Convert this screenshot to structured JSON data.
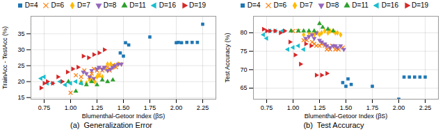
{
  "chart_data": [
    {
      "type": "scatter",
      "title": "(a)  Generalization Error",
      "xlabel": "Blumenthal-Getoor Index (βS)",
      "ylabel": "TrainAcc - TestAcc (%)",
      "xlim": [
        0.625,
        2.375
      ],
      "xticks": [
        0.75,
        {
          "value": 1.0,
          "label": "1.00"
        },
        1.25,
        {
          "value": 1.5,
          "label": "1.50"
        },
        1.75,
        {
          "value": 2.0,
          "label": "2.00"
        },
        2.25
      ],
      "ylim": [
        14.5,
        40.5
      ],
      "yticks": [
        15,
        20,
        25,
        30,
        35
      ],
      "grid": true,
      "legend": "top",
      "series": [
        {
          "name": "D=4",
          "color": "#1f77b4",
          "marker": "square",
          "x": [
            1.47,
            1.5,
            1.52,
            1.55,
            1.75,
            2.0,
            2.02,
            2.05,
            2.1,
            2.15,
            2.2,
            2.25
          ],
          "values": [
            29.0,
            28.0,
            32.2,
            31.5,
            34.0,
            32.2,
            32.3,
            32.2,
            32.3,
            32.3,
            32.3,
            38.0
          ]
        },
        {
          "name": "D=6",
          "color": "#ff7f0e",
          "marker": "x",
          "x": [
            1.0,
            1.05,
            1.1,
            1.13,
            1.18,
            1.2,
            1.22,
            1.25,
            1.27,
            1.3,
            1.32,
            1.35,
            1.37,
            1.4,
            1.43,
            1.47
          ],
          "values": [
            16.5,
            22.0,
            21.5,
            23.5,
            21.5,
            22.5,
            24.0,
            23.5,
            22.0,
            23.5,
            24.2,
            24.5,
            23.5,
            25.2,
            24.5,
            25.5
          ]
        },
        {
          "name": "D=7",
          "color": "#ffbb00",
          "marker": "diamond",
          "x": [
            1.1,
            1.15,
            1.18,
            1.2,
            1.23,
            1.25,
            1.27,
            1.3,
            1.33,
            1.35,
            1.38,
            1.4,
            1.42,
            1.45
          ],
          "values": [
            20.0,
            19.5,
            20.5,
            21.0,
            20.0,
            21.5,
            22.0,
            21.5,
            24.0,
            25.5,
            25.5,
            24.5,
            25.0,
            25.5
          ]
        },
        {
          "name": "D=8",
          "color": "#9467bd",
          "marker": "triangle_down",
          "x": [
            1.12,
            1.15,
            1.18,
            1.2,
            1.22,
            1.25,
            1.27,
            1.3,
            1.32,
            1.35,
            1.38,
            1.4,
            1.42,
            1.45,
            1.48
          ],
          "values": [
            23.0,
            22.5,
            21.5,
            23.5,
            21.0,
            24.0,
            24.5,
            24.0,
            24.5,
            23.5,
            24.0,
            24.5,
            25.0,
            25.5,
            25.5
          ]
        },
        {
          "name": "D=11",
          "color": "#2ca02c",
          "marker": "triangle_up",
          "x": [
            0.98,
            1.05,
            1.1,
            1.15,
            1.2,
            1.25,
            1.3,
            1.35,
            1.4
          ],
          "values": [
            20.0,
            17.0,
            19.5,
            19.0,
            20.0,
            19.0,
            20.5,
            20.0,
            20.5
          ]
        },
        {
          "name": "D=16",
          "color": "#17becf",
          "marker": "triangle_left",
          "x": [
            0.72,
            0.75,
            0.78,
            0.83,
            0.9,
            0.95,
            1.0,
            1.05,
            1.1
          ],
          "values": [
            21.0,
            21.5,
            19.5,
            19.5,
            20.0,
            19.0,
            19.5,
            20.0,
            19.5
          ]
        },
        {
          "name": "D=19",
          "color": "#d62728",
          "marker": "triangle_right",
          "x": [
            0.72,
            0.75,
            0.78,
            0.83,
            0.88,
            0.92,
            0.97,
            1.02,
            1.07,
            1.12,
            1.17,
            1.22,
            1.27,
            1.32
          ],
          "values": [
            18.0,
            19.5,
            20.0,
            19.5,
            21.5,
            20.0,
            23.0,
            24.0,
            24.5,
            28.0,
            27.5,
            28.5,
            29.0,
            30.0
          ]
        }
      ]
    },
    {
      "type": "scatter",
      "title": "(b)  Test Accuracy",
      "xlabel": "Blumenthal-Getoor Index (βS)",
      "ylabel": "Test Accuracy (%)",
      "xlim": [
        0.625,
        2.375
      ],
      "xticks": [
        0.75,
        {
          "value": 1.0,
          "label": "1.00"
        },
        1.25,
        {
          "value": 1.5,
          "label": "1.50"
        },
        1.75,
        {
          "value": 2.0,
          "label": "2.00"
        },
        2.25
      ],
      "ylim": [
        62.0,
        84.5
      ],
      "yticks": [
        65,
        70,
        75,
        80
      ],
      "grid": true,
      "legend": "top",
      "series": [
        {
          "name": "D=4",
          "color": "#1f77b4",
          "marker": "square",
          "x": [
            1.47,
            1.5,
            1.52,
            1.55,
            1.75,
            2.0,
            2.05,
            2.1,
            2.15,
            2.2,
            2.25
          ],
          "values": [
            66.5,
            65.5,
            67.5,
            66.0,
            65.5,
            62.0,
            68.0,
            68.0,
            68.0,
            68.0,
            68.0
          ]
        },
        {
          "name": "D=6",
          "color": "#ff7f0e",
          "marker": "x",
          "x": [
            1.0,
            1.05,
            1.1,
            1.13,
            1.18,
            1.2,
            1.22,
            1.25,
            1.27,
            1.3,
            1.32,
            1.35,
            1.37,
            1.4,
            1.43,
            1.47
          ],
          "values": [
            80.5,
            80.5,
            78.0,
            78.0,
            77.5,
            77.0,
            76.5,
            76.5,
            77.0,
            76.5,
            75.5,
            75.5,
            76.5,
            75.5,
            75.5,
            76.0
          ]
        },
        {
          "name": "D=7",
          "color": "#ffbb00",
          "marker": "diamond",
          "x": [
            1.1,
            1.15,
            1.18,
            1.2,
            1.23,
            1.25,
            1.27,
            1.3,
            1.33,
            1.35,
            1.38,
            1.4,
            1.42,
            1.45
          ],
          "values": [
            79.5,
            80.0,
            79.5,
            79.5,
            80.0,
            79.5,
            80.0,
            80.5,
            80.0,
            80.5,
            80.5,
            80.0,
            80.0,
            79.5
          ]
        },
        {
          "name": "D=8",
          "color": "#9467bd",
          "marker": "triangle_down",
          "x": [
            1.12,
            1.15,
            1.18,
            1.2,
            1.22,
            1.25,
            1.27,
            1.3,
            1.32,
            1.35,
            1.38,
            1.4,
            1.42,
            1.45,
            1.48
          ],
          "values": [
            78.5,
            79.0,
            79.5,
            78.5,
            80.0,
            78.0,
            77.5,
            77.0,
            76.5,
            76.0,
            76.5,
            76.5,
            76.0,
            76.5,
            75.5
          ]
        },
        {
          "name": "D=11",
          "color": "#2ca02c",
          "marker": "triangle_up",
          "x": [
            0.98,
            1.05,
            1.1,
            1.15,
            1.2,
            1.25,
            1.28,
            1.33,
            1.38
          ],
          "values": [
            80.5,
            80.5,
            80.5,
            80.5,
            80.5,
            82.5,
            81.5,
            81.0,
            80.5
          ]
        },
        {
          "name": "D=16",
          "color": "#17becf",
          "marker": "triangle_left",
          "x": [
            0.72,
            0.75,
            0.78,
            0.83,
            0.9,
            0.95,
            1.0,
            1.05,
            1.1
          ],
          "values": [
            79.5,
            78.5,
            80.5,
            80.5,
            80.5,
            75.5,
            76.0,
            76.5,
            75.5
          ]
        },
        {
          "name": "D=19",
          "color": "#d62728",
          "marker": "triangle_right",
          "x": [
            0.72,
            0.75,
            0.78,
            0.83,
            0.88,
            0.92,
            0.97,
            1.02,
            1.07,
            1.12,
            1.17,
            1.22,
            1.27,
            1.32
          ],
          "values": [
            81.0,
            80.5,
            80.5,
            80.5,
            80.0,
            80.5,
            77.5,
            74.0,
            71.5,
            77.0,
            76.5,
            68.5,
            68.5,
            69.0
          ]
        }
      ]
    }
  ]
}
